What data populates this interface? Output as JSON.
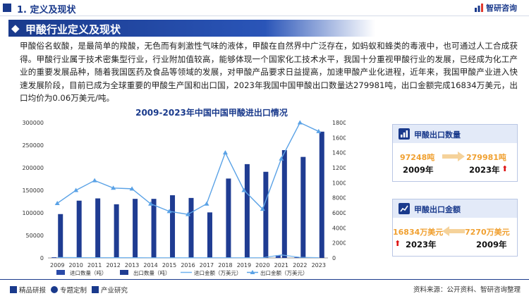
{
  "header": {
    "section_title": "1. 定义及现状",
    "logo_text": "智研咨询",
    "banner_title": "甲酸行业定义及现状"
  },
  "paragraph": "甲酸俗名蚁酸，是最简单的羧酸，无色而有刺激性气味的液体，甲酸在自然界中广泛存在，如蚂蚁和蜂类的毒液中，也可通过人工合成获得。甲酸行业属于技术密集型行业，行业附加值较高，能够体现一个国家化工技术水平，我国十分重视甲酸行业的发展，已经成为化工产业的重要发展品种，随着我国医药及食品等领域的发展，对甲酸产品要求日益提高，加速甲酸产业化进程，近年来，我国甲酸产业进入快速发展阶段，目前已成为全球重要的甲酸生产国和出口国，2023年我国中国甲酸出口数量达279981吨，出口金额完成16834万美元，出口均价为0.06万美元/吨。",
  "colors": {
    "primary": "#1a3a8c",
    "bar": "#1f3c92",
    "line": "#5aa2e6",
    "accent_orange": "#f0a030",
    "up_arrow": "#dd1111"
  },
  "chart_data": {
    "type": "bar",
    "title": "2009-2023年中国中国甲酸进出口情况",
    "categories": [
      "2009",
      "2010",
      "2011",
      "2012",
      "2013",
      "2014",
      "2015",
      "2016",
      "2017",
      "2018",
      "2019",
      "2020",
      "2021",
      "2022",
      "2023"
    ],
    "y_left_ticks": [
      "0",
      "50000",
      "100000",
      "150000",
      "200000",
      "250000",
      "300000"
    ],
    "y_left_range": [
      0,
      300000
    ],
    "y_right_ticks": [
      "0",
      "2000",
      "4000",
      "6000",
      "8000",
      "10000",
      "12000",
      "14000",
      "16000",
      "18000"
    ],
    "y_right_range": [
      0,
      18000
    ],
    "legend_position": "bottom",
    "grid": false,
    "series": [
      {
        "name": "进口数量（吨）",
        "kind": "bar",
        "axis": "left",
        "values": [
          1500,
          1200,
          800,
          700,
          700,
          600,
          600,
          500,
          700,
          600,
          600,
          600,
          6000,
          1500,
          600
        ]
      },
      {
        "name": "出口数量（吨）",
        "kind": "bar",
        "axis": "left",
        "values": [
          97248,
          127000,
          132000,
          119000,
          131000,
          131000,
          139000,
          133000,
          101000,
          176000,
          208000,
          191000,
          239000,
          224000,
          279981
        ]
      },
      {
        "name": "进口金额（万美元）",
        "kind": "line",
        "axis": "right",
        "values": [
          60,
          50,
          40,
          35,
          35,
          30,
          28,
          25,
          30,
          30,
          30,
          30,
          400,
          90,
          40
        ]
      },
      {
        "name": "出口金额（万美元）",
        "kind": "line",
        "axis": "right",
        "values": [
          7270,
          9000,
          10300,
          9300,
          9200,
          7200,
          6200,
          5800,
          7200,
          14000,
          9000,
          6500,
          13200,
          18000,
          16834
        ]
      }
    ]
  },
  "cards": {
    "export_qty": {
      "title": "甲酸出口数量",
      "from_value": "97248吨",
      "from_year": "2009年",
      "to_value": "279981吨",
      "to_year": "2023年"
    },
    "export_amount": {
      "title": "甲酸出口金额",
      "left_value": "16834万美元",
      "left_year": "2023年",
      "right_value": "7270万美元",
      "right_year": "2009年"
    }
  },
  "footer": {
    "item1": "精品研报",
    "item2": "专题定制",
    "item3": "产业研究",
    "source": "资料来源：公开资料、智研咨询整理"
  }
}
